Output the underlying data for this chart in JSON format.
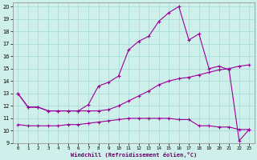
{
  "xlabel": "Windchill (Refroidissement éolien,°C)",
  "background_color": "#cff0ea",
  "grid_color": "#aaddda",
  "line_color": "#990099",
  "xlim": [
    -0.5,
    23.5
  ],
  "ylim": [
    9,
    20.3
  ],
  "xticks": [
    0,
    1,
    2,
    3,
    4,
    5,
    6,
    7,
    8,
    9,
    10,
    11,
    12,
    13,
    14,
    15,
    16,
    17,
    18,
    19,
    20,
    21,
    22,
    23
  ],
  "yticks": [
    9,
    10,
    11,
    12,
    13,
    14,
    15,
    16,
    17,
    18,
    19,
    20
  ],
  "curve_peak_x": [
    0,
    1,
    2,
    3,
    4,
    5,
    6,
    7,
    8,
    9,
    10,
    11,
    12,
    13,
    14,
    15,
    16,
    17,
    18,
    19,
    20,
    21,
    22,
    23
  ],
  "curve_peak_y": [
    13.0,
    11.9,
    11.9,
    11.6,
    11.6,
    11.6,
    11.6,
    12.1,
    13.6,
    13.9,
    14.4,
    16.5,
    17.2,
    17.6,
    18.8,
    19.5,
    20.0,
    17.3,
    17.8,
    15.0,
    15.2,
    14.9,
    9.2,
    10.1
  ],
  "curve_mid_x": [
    0,
    1,
    2,
    3,
    4,
    5,
    6,
    7,
    8,
    9,
    10,
    11,
    12,
    13,
    14,
    15,
    16,
    17,
    18,
    19,
    20,
    21,
    22,
    23
  ],
  "curve_mid_y": [
    13.0,
    11.9,
    11.9,
    11.6,
    11.6,
    11.6,
    11.6,
    11.6,
    11.6,
    11.7,
    12.0,
    12.4,
    12.8,
    13.2,
    13.7,
    14.0,
    14.2,
    14.3,
    14.5,
    14.7,
    14.9,
    15.0,
    15.2,
    15.3
  ],
  "curve_low_x": [
    0,
    1,
    2,
    3,
    4,
    5,
    6,
    7,
    8,
    9,
    10,
    11,
    12,
    13,
    14,
    15,
    16,
    17,
    18,
    19,
    20,
    21,
    22,
    23
  ],
  "curve_low_y": [
    10.5,
    10.4,
    10.4,
    10.4,
    10.4,
    10.5,
    10.5,
    10.6,
    10.7,
    10.8,
    10.9,
    11.0,
    11.0,
    11.0,
    11.0,
    11.0,
    10.9,
    10.9,
    10.4,
    10.4,
    10.3,
    10.3,
    10.1,
    10.1
  ]
}
